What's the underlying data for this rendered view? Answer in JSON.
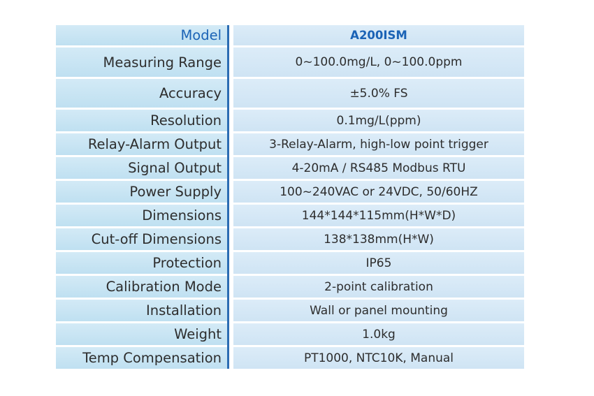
{
  "table": {
    "header": {
      "label": "Model",
      "value": "A200ISM"
    },
    "rows": [
      {
        "label": "Measuring Range",
        "value": "0~100.0mg/L, 0~100.0ppm"
      },
      {
        "label": "Accuracy",
        "value": "±5.0% FS"
      },
      {
        "label": "Resolution",
        "value": "0.1mg/L(ppm)"
      },
      {
        "label": "Relay-Alarm Output",
        "value": "3-Relay-Alarm, high-low point trigger"
      },
      {
        "label": "Signal Output",
        "value": "4-20mA / RS485 Modbus RTU"
      },
      {
        "label": "Power Supply",
        "value": "100~240VAC or 24VDC, 50/60HZ"
      },
      {
        "label": "Dimensions",
        "value": "144*144*115mm(H*W*D)"
      },
      {
        "label": "Cut-off Dimensions",
        "value": "138*138mm(H*W)"
      },
      {
        "label": "Protection",
        "value": "IP65"
      },
      {
        "label": "Calibration Mode",
        "value": "2-point calibration"
      },
      {
        "label": "Installation",
        "value": "Wall or panel mounting"
      },
      {
        "label": "Weight",
        "value": "1.0kg"
      },
      {
        "label": "Temp Compensation",
        "value": "PT1000, NTC10K, Manual"
      }
    ]
  },
  "colors": {
    "header_text": "#1b63b6",
    "divider": "#2b6cb3",
    "cell_background": "#d3eaf6",
    "body_text": "#2d2d2d"
  }
}
